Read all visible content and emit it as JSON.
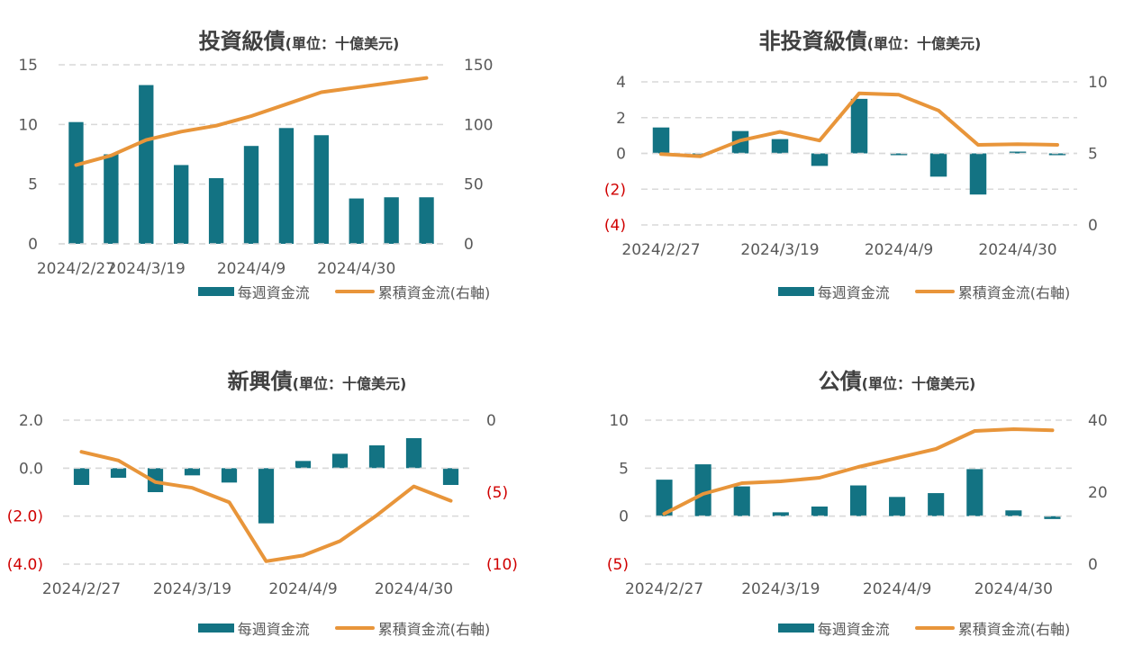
{
  "legend": {
    "bar_label": "每週資金流",
    "line_label": "累積資金流(右軸)"
  },
  "colors": {
    "bar": "#137383",
    "line": "#E8953A",
    "negative_tick": "#D00000",
    "axis_text": "#595959",
    "grid": "#D9D9D9"
  },
  "charts": [
    {
      "title": {
        "main": "投資級債",
        "sub": "(單位：十億美元)"
      }
    },
    {
      "title": {
        "main": "非投資級債",
        "sub": "(單位：十億美元)"
      }
    },
    {
      "title": {
        "main": "新興債",
        "sub": "(單位：十億美元)"
      }
    },
    {
      "title": {
        "main": "公債",
        "sub": "(單位：十億美元)"
      }
    }
  ],
  "chart_data": [
    {
      "type": "bar+line",
      "title": "投資級債(單位：十億美元)",
      "x_tick_labels": [
        "2024/2/27",
        "2024/3/19",
        "2024/4/9",
        "2024/4/30"
      ],
      "series": [
        {
          "name": "每週資金流",
          "type": "bar",
          "axis": "left",
          "values": [
            10.2,
            7.5,
            13.3,
            6.6,
            5.5,
            8.2,
            9.7,
            9.1,
            3.8,
            3.9,
            3.9
          ]
        },
        {
          "name": "累積資金流(右軸)",
          "type": "line",
          "axis": "right",
          "values": [
            66,
            74,
            87,
            94,
            99,
            107,
            117,
            127,
            131,
            135,
            139
          ]
        }
      ],
      "y_left": {
        "ticks": [
          "0",
          "5",
          "10",
          "15"
        ],
        "range": [
          0,
          15
        ]
      },
      "y_right": {
        "ticks": [
          "0",
          "50",
          "100",
          "150"
        ],
        "range": [
          0,
          150
        ]
      },
      "grid": true,
      "legend_position": "bottom"
    },
    {
      "type": "bar+line",
      "title": "非投資級債(單位：十億美元)",
      "x_tick_labels": [
        "2024/2/27",
        "2024/3/19",
        "2024/4/9",
        "2024/4/30"
      ],
      "series": [
        {
          "name": "每週資金流",
          "type": "bar",
          "axis": "left",
          "values": [
            1.45,
            -0.1,
            1.25,
            0.8,
            -0.7,
            3.05,
            -0.1,
            -1.3,
            -2.3,
            0.1,
            -0.1
          ]
        },
        {
          "name": "累積資金流(右軸)",
          "type": "line",
          "axis": "right",
          "values": [
            4.95,
            4.8,
            5.9,
            6.5,
            5.9,
            9.2,
            9.1,
            8.0,
            5.6,
            5.65,
            5.6
          ]
        }
      ],
      "y_left": {
        "ticks": [
          "(4)",
          "(2)",
          "0",
          "2",
          "4"
        ],
        "range": [
          -4,
          4
        ]
      },
      "y_right": {
        "ticks": [
          "0",
          "5",
          "10"
        ],
        "range": [
          0,
          10
        ]
      },
      "grid": true,
      "legend_position": "bottom"
    },
    {
      "type": "bar+line",
      "title": "新興債(單位：十億美元)",
      "x_tick_labels": [
        "2024/2/27",
        "2024/3/19",
        "2024/4/9",
        "2024/4/30"
      ],
      "series": [
        {
          "name": "每週資金流",
          "type": "bar",
          "axis": "left",
          "values": [
            -0.7,
            -0.4,
            -1.0,
            -0.3,
            -0.6,
            -2.3,
            0.3,
            0.6,
            0.95,
            1.25,
            -0.7
          ]
        },
        {
          "name": "累積資金流(右軸)",
          "type": "line",
          "axis": "right",
          "values": [
            -2.2,
            -2.8,
            -4.3,
            -4.7,
            -5.7,
            -9.8,
            -9.4,
            -8.4,
            -6.6,
            -4.6,
            -5.6
          ]
        }
      ],
      "y_left": {
        "ticks": [
          "(4.0)",
          "(2.0)",
          "0.0",
          "2.0"
        ],
        "range": [
          -4,
          2
        ]
      },
      "y_right": {
        "ticks": [
          "(10)",
          "(5)",
          "0"
        ],
        "range": [
          -10,
          0
        ]
      },
      "grid": true,
      "legend_position": "bottom"
    },
    {
      "type": "bar+line",
      "title": "公債(單位：十億美元)",
      "x_tick_labels": [
        "2024/2/27",
        "2024/3/19",
        "2024/4/9",
        "2024/4/30"
      ],
      "series": [
        {
          "name": "每週資金流",
          "type": "bar",
          "axis": "left",
          "values": [
            3.8,
            5.4,
            3.1,
            0.4,
            1.0,
            3.2,
            2.0,
            2.4,
            4.9,
            0.6,
            -0.3
          ]
        },
        {
          "name": "累積資金流(右軸)",
          "type": "line",
          "axis": "right",
          "values": [
            14,
            19.5,
            22.5,
            23,
            24,
            27,
            29.5,
            32,
            37,
            37.5,
            37.2
          ]
        }
      ],
      "y_left": {
        "ticks": [
          "(5)",
          "0",
          "5",
          "10"
        ],
        "range": [
          -5,
          10
        ]
      },
      "y_right": {
        "ticks": [
          "0",
          "20",
          "40"
        ],
        "range": [
          0,
          40
        ]
      },
      "grid": true,
      "legend_position": "bottom"
    }
  ]
}
